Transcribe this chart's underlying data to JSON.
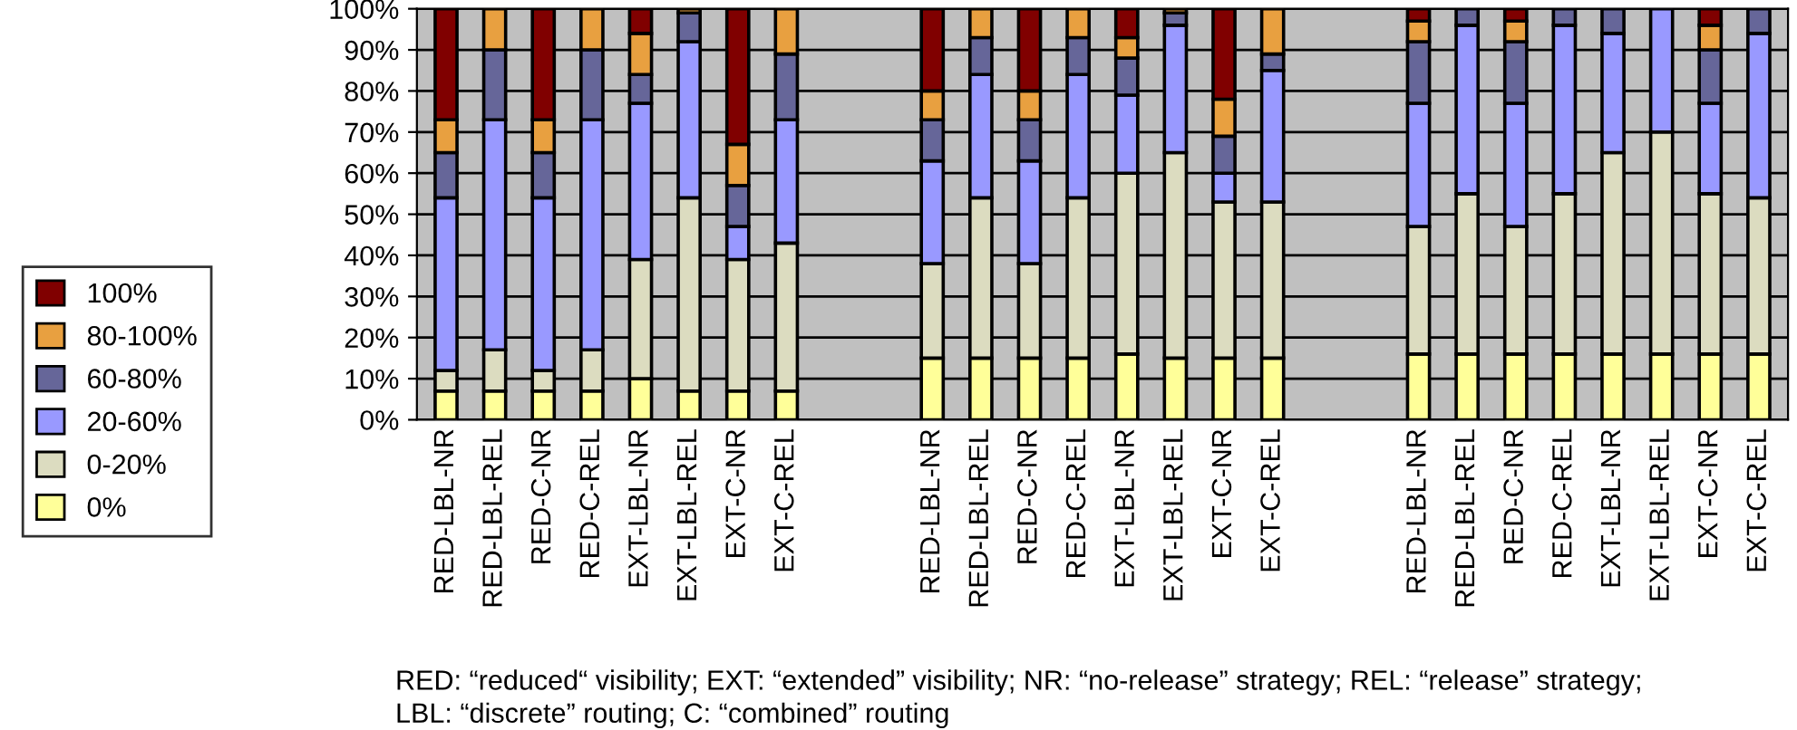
{
  "chart_data": {
    "type": "bar",
    "stacked": true,
    "categories": [
      "RED-LBL-NR",
      "RED-LBL-REL",
      "RED-C-NR",
      "RED-C-REL",
      "EXT-LBL-NR",
      "EXT-LBL-REL",
      "EXT-C-NR",
      "EXT-C-REL",
      null,
      null,
      "RED-LBL-NR",
      "RED-LBL-REL",
      "RED-C-NR",
      "RED-C-REL",
      "EXT-LBL-NR",
      "EXT-LBL-REL",
      "EXT-C-NR",
      "EXT-C-REL",
      null,
      null,
      "RED-LBL-NR",
      "RED-LBL-REL",
      "RED-C-NR",
      "RED-C-REL",
      "EXT-LBL-NR",
      "EXT-LBL-REL",
      "EXT-C-NR",
      "EXT-C-REL"
    ],
    "series": [
      {
        "name": "0%",
        "color": "#ffff99",
        "values": [
          7,
          7,
          7,
          7,
          10,
          7,
          7,
          7,
          null,
          null,
          15,
          15,
          15,
          15,
          16,
          15,
          15,
          15,
          null,
          null,
          16,
          16,
          16,
          16,
          16,
          16,
          16,
          16
        ]
      },
      {
        "name": "0-20%",
        "color": "#dcdcc0",
        "values": [
          5,
          10,
          5,
          10,
          29,
          47,
          32,
          36,
          null,
          null,
          23,
          39,
          23,
          39,
          44,
          50,
          38,
          38,
          null,
          null,
          31,
          39,
          31,
          39,
          49,
          54,
          39,
          38
        ]
      },
      {
        "name": "20-60%",
        "color": "#9999ff",
        "values": [
          42,
          56,
          42,
          56,
          38,
          38,
          8,
          30,
          null,
          null,
          25,
          30,
          25,
          30,
          19,
          31,
          7,
          32,
          null,
          null,
          30,
          41,
          30,
          41,
          29,
          30,
          22,
          40
        ]
      },
      {
        "name": "60-80%",
        "color": "#666699",
        "values": [
          11,
          17,
          11,
          17,
          7,
          7,
          10,
          16,
          null,
          null,
          10,
          9,
          10,
          9,
          9,
          3,
          9,
          4,
          null,
          null,
          15,
          4,
          15,
          4,
          6,
          0,
          13,
          6
        ]
      },
      {
        "name": "80-100%",
        "color": "#e8a040",
        "values": [
          8,
          10,
          8,
          10,
          10,
          1,
          10,
          11,
          null,
          null,
          7,
          7,
          7,
          7,
          5,
          1,
          9,
          11,
          null,
          null,
          5,
          0,
          5,
          0,
          0,
          0,
          6,
          0
        ]
      },
      {
        "name": "100%",
        "color": "#800000",
        "values": [
          27,
          0,
          27,
          0,
          6,
          0,
          33,
          0,
          null,
          null,
          20,
          0,
          20,
          0,
          7,
          0,
          22,
          0,
          null,
          null,
          3,
          0,
          3,
          0,
          0,
          0,
          4,
          0
        ]
      }
    ],
    "ylim": [
      0,
      100
    ],
    "yticks": [
      {
        "value": 0,
        "label": "0%"
      },
      {
        "value": 10,
        "label": "10%"
      },
      {
        "value": 20,
        "label": "20%"
      },
      {
        "value": 30,
        "label": "30%"
      },
      {
        "value": 40,
        "label": "40%"
      },
      {
        "value": 50,
        "label": "50%"
      },
      {
        "value": 60,
        "label": "60%"
      },
      {
        "value": 70,
        "label": "70%"
      },
      {
        "value": 80,
        "label": "80%"
      },
      {
        "value": 90,
        "label": "90%"
      },
      {
        "value": 100,
        "label": "100%"
      }
    ],
    "grid": "y",
    "legend": "left",
    "annotations": [
      "RED: “reduced“ visibility; EXT: “extended” visibility; NR: “no-release” strategy; REL: “release” strategy;",
      "LBL: “discrete” routing; C: “combined” routing"
    ]
  }
}
